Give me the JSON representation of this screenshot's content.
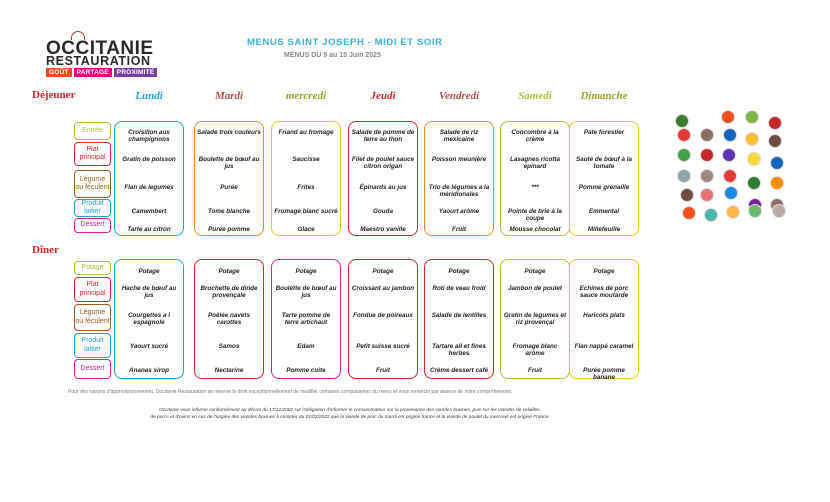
{
  "logo": {
    "line1": "OCCITANIE",
    "line2": "RESTAURATION",
    "tags": [
      {
        "text": "GOÛT",
        "color": "#e94e1b"
      },
      {
        "text": "PARTAGE",
        "color": "#e6007e"
      },
      {
        "text": "PROXIMITÉ",
        "color": "#7b3fa0"
      }
    ]
  },
  "header": {
    "title": "MENUS SAINT JOSEPH - MIDI ET SOIR",
    "subtitle": "MENUS DU 9 au 15 Juin 2025"
  },
  "meals": {
    "lunch_label": "Déjeuner",
    "dinner_label": "Dîner"
  },
  "days": [
    {
      "name": "Lundi",
      "color": "#1aa3d8"
    },
    {
      "name": "Mardi",
      "color": "#b0504a"
    },
    {
      "name": "mercredi",
      "color": "#9aa21a"
    },
    {
      "name": "Jeudi",
      "color": "#d8232a"
    },
    {
      "name": "Vendredi",
      "color": "#b0504a"
    },
    {
      "name": "Samedi",
      "color": "#a8c43a"
    },
    {
      "name": "Dimanche",
      "color": "#9aa21a"
    }
  ],
  "lunch_categories": [
    {
      "label": "Entrée",
      "color": "#a8c43a"
    },
    {
      "label": "Plat principal",
      "color": "#d8232a"
    },
    {
      "label": "Légume ou féculent",
      "color": "#9b5a1a"
    },
    {
      "label": "Produit laitier",
      "color": "#1aa3d8"
    },
    {
      "label": "Dessert",
      "color": "#d4209a"
    }
  ],
  "dinner_categories": [
    {
      "label": "Potage",
      "color": "#a8c43a"
    },
    {
      "label": "Plat principal",
      "color": "#d8232a"
    },
    {
      "label": "Légume ou féculent",
      "color": "#9b5a1a"
    },
    {
      "label": "Produit laitier",
      "color": "#1aa3d8"
    },
    {
      "label": "Dessert",
      "color": "#d4209a"
    }
  ],
  "lunch_menu": [
    {
      "color": "#1aa3d8",
      "items": [
        "Croisillon aux champignons",
        "Gratin de poisson",
        "Flan de legumes",
        "Camembert",
        "Tarte au citron"
      ]
    },
    {
      "color": "#f08a24",
      "items": [
        "Salade trois couleurs",
        "Boulette de bœuf au jus",
        "Purée",
        "Tome blanche",
        "Purée pomme"
      ]
    },
    {
      "color": "#f0c419",
      "items": [
        "Friand au fromage",
        "Saucisse",
        "Frites",
        "Fromage blanc sucré",
        "Glace"
      ]
    },
    {
      "color": "#d8232a",
      "items": [
        "Salade de pomme de terre au thon",
        "Filet de poulet sauce citron origan",
        "Épinards au jus",
        "Gouda",
        "Maestro vanille"
      ]
    },
    {
      "color": "#f08a24",
      "items": [
        "Salade de riz mexicaine",
        "Poisson meunière",
        "Trio de légumes a la méridionales",
        "Yaourt arôme",
        "Fruit"
      ]
    },
    {
      "color": "#a8c43a",
      "items": [
        "Concombre à la crème",
        "Lasagnes ricotta épinard",
        "***",
        "Pointe de brie à la coupe",
        "Mousse chocolat"
      ]
    },
    {
      "color": "#f0c419",
      "items": [
        "Pate forestier",
        "Sauté de bœuf à la tomate",
        "Pomme grenaille",
        "Emmental",
        "Millefeuille"
      ]
    }
  ],
  "dinner_menu": [
    {
      "color": "#1aa3d8",
      "items": [
        "Potage",
        "Hache de bœuf au jus",
        "Courgettes a l espagnole",
        "Yaourt sucré",
        "Ananas sirop"
      ]
    },
    {
      "color": "#d8232a",
      "items": [
        "Potage",
        "Brochette de dinde provençale",
        "Poêlée navets carottes",
        "Samos",
        "Nectarine"
      ]
    },
    {
      "color": "#d4209a",
      "items": [
        "Potage",
        "Boulette de bœuf au jus",
        "Tarte pomme de terre artichaut",
        "Edam",
        "Pomme cuite"
      ]
    },
    {
      "color": "#d8232a",
      "items": [
        "Potage",
        "Croissant au jambon",
        "Fondue de poireaux",
        "Petit suisse sucré",
        "Fruit"
      ]
    },
    {
      "color": "#d8232a",
      "items": [
        "Potage",
        "Roti de veau froid",
        "Salade de lentilles",
        "Tartare all et fines herbes",
        "Crème dessert café"
      ]
    },
    {
      "color": "#a8c43a",
      "items": [
        "Potage",
        "Jambon de poulet",
        "Gratin de legumes et riz provençal",
        "Fromage blanc arôme",
        "Fruit"
      ]
    },
    {
      "color": "#f0c419",
      "items": [
        "Potage",
        "Echines de porc sauce moutarde",
        "Haricots plats",
        "Flan nappé caramel",
        "Purée pomme banane"
      ]
    }
  ],
  "footer": {
    "disclaimer": "Pour des raisons d'approvisionnement, Occitanie Restauration se réserve le droit exceptionnellement de modifier certaines composantes du menu et vous remercie par avance de votre compréhension.",
    "legal_1": "Occitanie vous informe conformément au décret du 17/12/2002 sur l'obligation d'informer le consommateur sur la provenance des viandes bovines, puis sur les viandes de volailles,",
    "legal_2": "de porcs et d'ovins en sus de l'origine des viandes bovines à compter du 01/03/2022 que la viande de porc du mardi est origine france et la viande de poulet du mercredi est origine France."
  },
  "label_badges": [
    {
      "name": "label-badge",
      "color": "#3a7d2c"
    },
    {
      "name": "label-badge",
      "color": "#e94e1b"
    },
    {
      "name": "label-badge",
      "color": "#7cb342"
    },
    {
      "name": "label-badge",
      "color": "#c62828"
    },
    {
      "name": "label-badge",
      "color": "#e53935"
    },
    {
      "name": "label-badge",
      "color": "#8d6e63"
    },
    {
      "name": "label-badge",
      "color": "#1565c0"
    },
    {
      "name": "label-badge",
      "color": "#fbc02d"
    },
    {
      "name": "label-badge",
      "color": "#6d4c41"
    },
    {
      "name": "label-badge",
      "color": "#43a047"
    },
    {
      "name": "label-badge",
      "color": "#c62828"
    },
    {
      "name": "label-badge",
      "color": "#5e35b1"
    },
    {
      "name": "label-badge",
      "color": "#fdd835"
    },
    {
      "name": "label-badge",
      "color": "#1565c0"
    },
    {
      "name": "label-badge",
      "color": "#90a4ae"
    },
    {
      "name": "label-badge",
      "color": "#a1887f"
    },
    {
      "name": "label-badge",
      "color": "#e53935"
    },
    {
      "name": "label-badge",
      "color": "#2e7d32"
    },
    {
      "name": "label-badge",
      "color": "#ff8f00"
    },
    {
      "name": "label-badge",
      "color": "#6d4c41"
    },
    {
      "name": "label-badge",
      "color": "#e57373"
    },
    {
      "name": "label-badge",
      "color": "#1e88e5"
    },
    {
      "name": "label-badge",
      "color": "#7b1fa2"
    },
    {
      "name": "label-badge",
      "color": "#8d6e63"
    },
    {
      "name": "label-badge",
      "color": "#f4511e"
    },
    {
      "name": "label-badge",
      "color": "#4db6ac"
    },
    {
      "name": "label-badge",
      "color": "#ffb74d"
    },
    {
      "name": "label-badge",
      "color": "#66bb6a"
    },
    {
      "name": "label-badge",
      "color": "#bcaaa4"
    }
  ]
}
